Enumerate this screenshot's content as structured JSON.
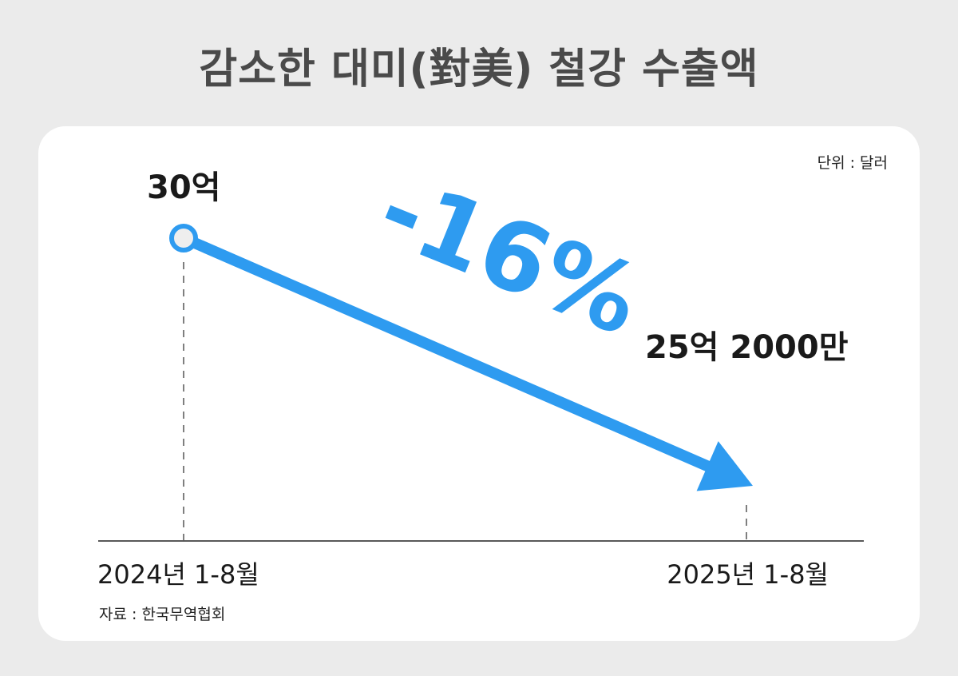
{
  "title": "감소한 대미(對美) 철강 수출액",
  "unit": "단위 : 달러",
  "source": "자료 : 한국무역협회",
  "chart_data": {
    "type": "line",
    "title": "감소한 대미(對美) 철강 수출액",
    "categories": [
      "2024년 1-8월",
      "2025년 1-8월"
    ],
    "values": [
      30,
      25.2
    ],
    "value_labels": [
      "30억",
      "25억 2000만"
    ],
    "change_label": "-16%",
    "ylim": [
      0,
      32
    ],
    "grid": false,
    "colors": {
      "line": "#2e9bf0",
      "title": "#4a4a4a",
      "axis": "#222222"
    }
  }
}
